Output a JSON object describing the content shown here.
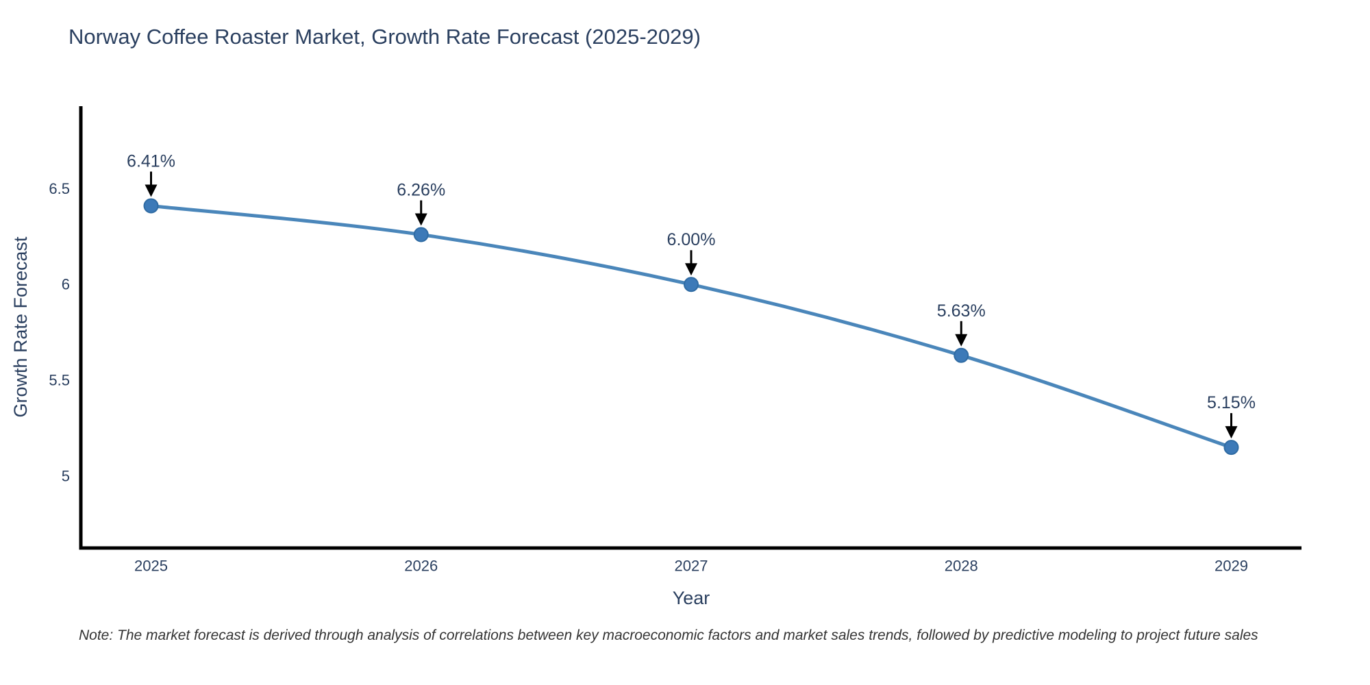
{
  "title": "Norway Coffee Roaster Market, Growth Rate Forecast (2025-2029)",
  "note": "Note: The market forecast is derived through analysis of correlations between key macroeconomic factors and market sales trends, followed by predictive modeling to project future sales",
  "colors": {
    "title_text": "#2a3f5f",
    "axis_text": "#2a3f5f",
    "axis_line": "#000000",
    "note_text": "#333333",
    "annotation_text": "#2a3f5f",
    "annotation_arrow": "#000000",
    "background": "#ffffff"
  },
  "chart_data": {
    "type": "line",
    "title": "Norway Coffee Roaster Market, Growth Rate Forecast (2025-2029)",
    "x": [
      2025,
      2026,
      2027,
      2028,
      2029
    ],
    "values": [
      6.41,
      6.26,
      6.0,
      5.63,
      5.15
    ],
    "point_labels": [
      "6.41%",
      "6.26%",
      "6.00%",
      "5.63%",
      "5.15%"
    ],
    "xlabel": "Year",
    "ylabel": "Growth Rate Forecast",
    "xticks": [
      {
        "v": 2025,
        "label": "2025"
      },
      {
        "v": 2026,
        "label": "2026"
      },
      {
        "v": 2027,
        "label": "2027"
      },
      {
        "v": 2028,
        "label": "2028"
      },
      {
        "v": 2029,
        "label": "2029"
      }
    ],
    "yticks": [
      {
        "v": 6.5,
        "label": "6.5"
      },
      {
        "v": 6.0,
        "label": "6"
      },
      {
        "v": 5.5,
        "label": "5.5"
      },
      {
        "v": 5.0,
        "label": "5"
      }
    ],
    "xlim": [
      2024.74,
      2029.26
    ],
    "ylim": [
      4.625,
      6.93
    ],
    "grid": false,
    "legend": "none",
    "line_color": "#4a86ba",
    "marker_color": "#3d7ab8",
    "marker_edge_color": "#2f6ba3"
  }
}
